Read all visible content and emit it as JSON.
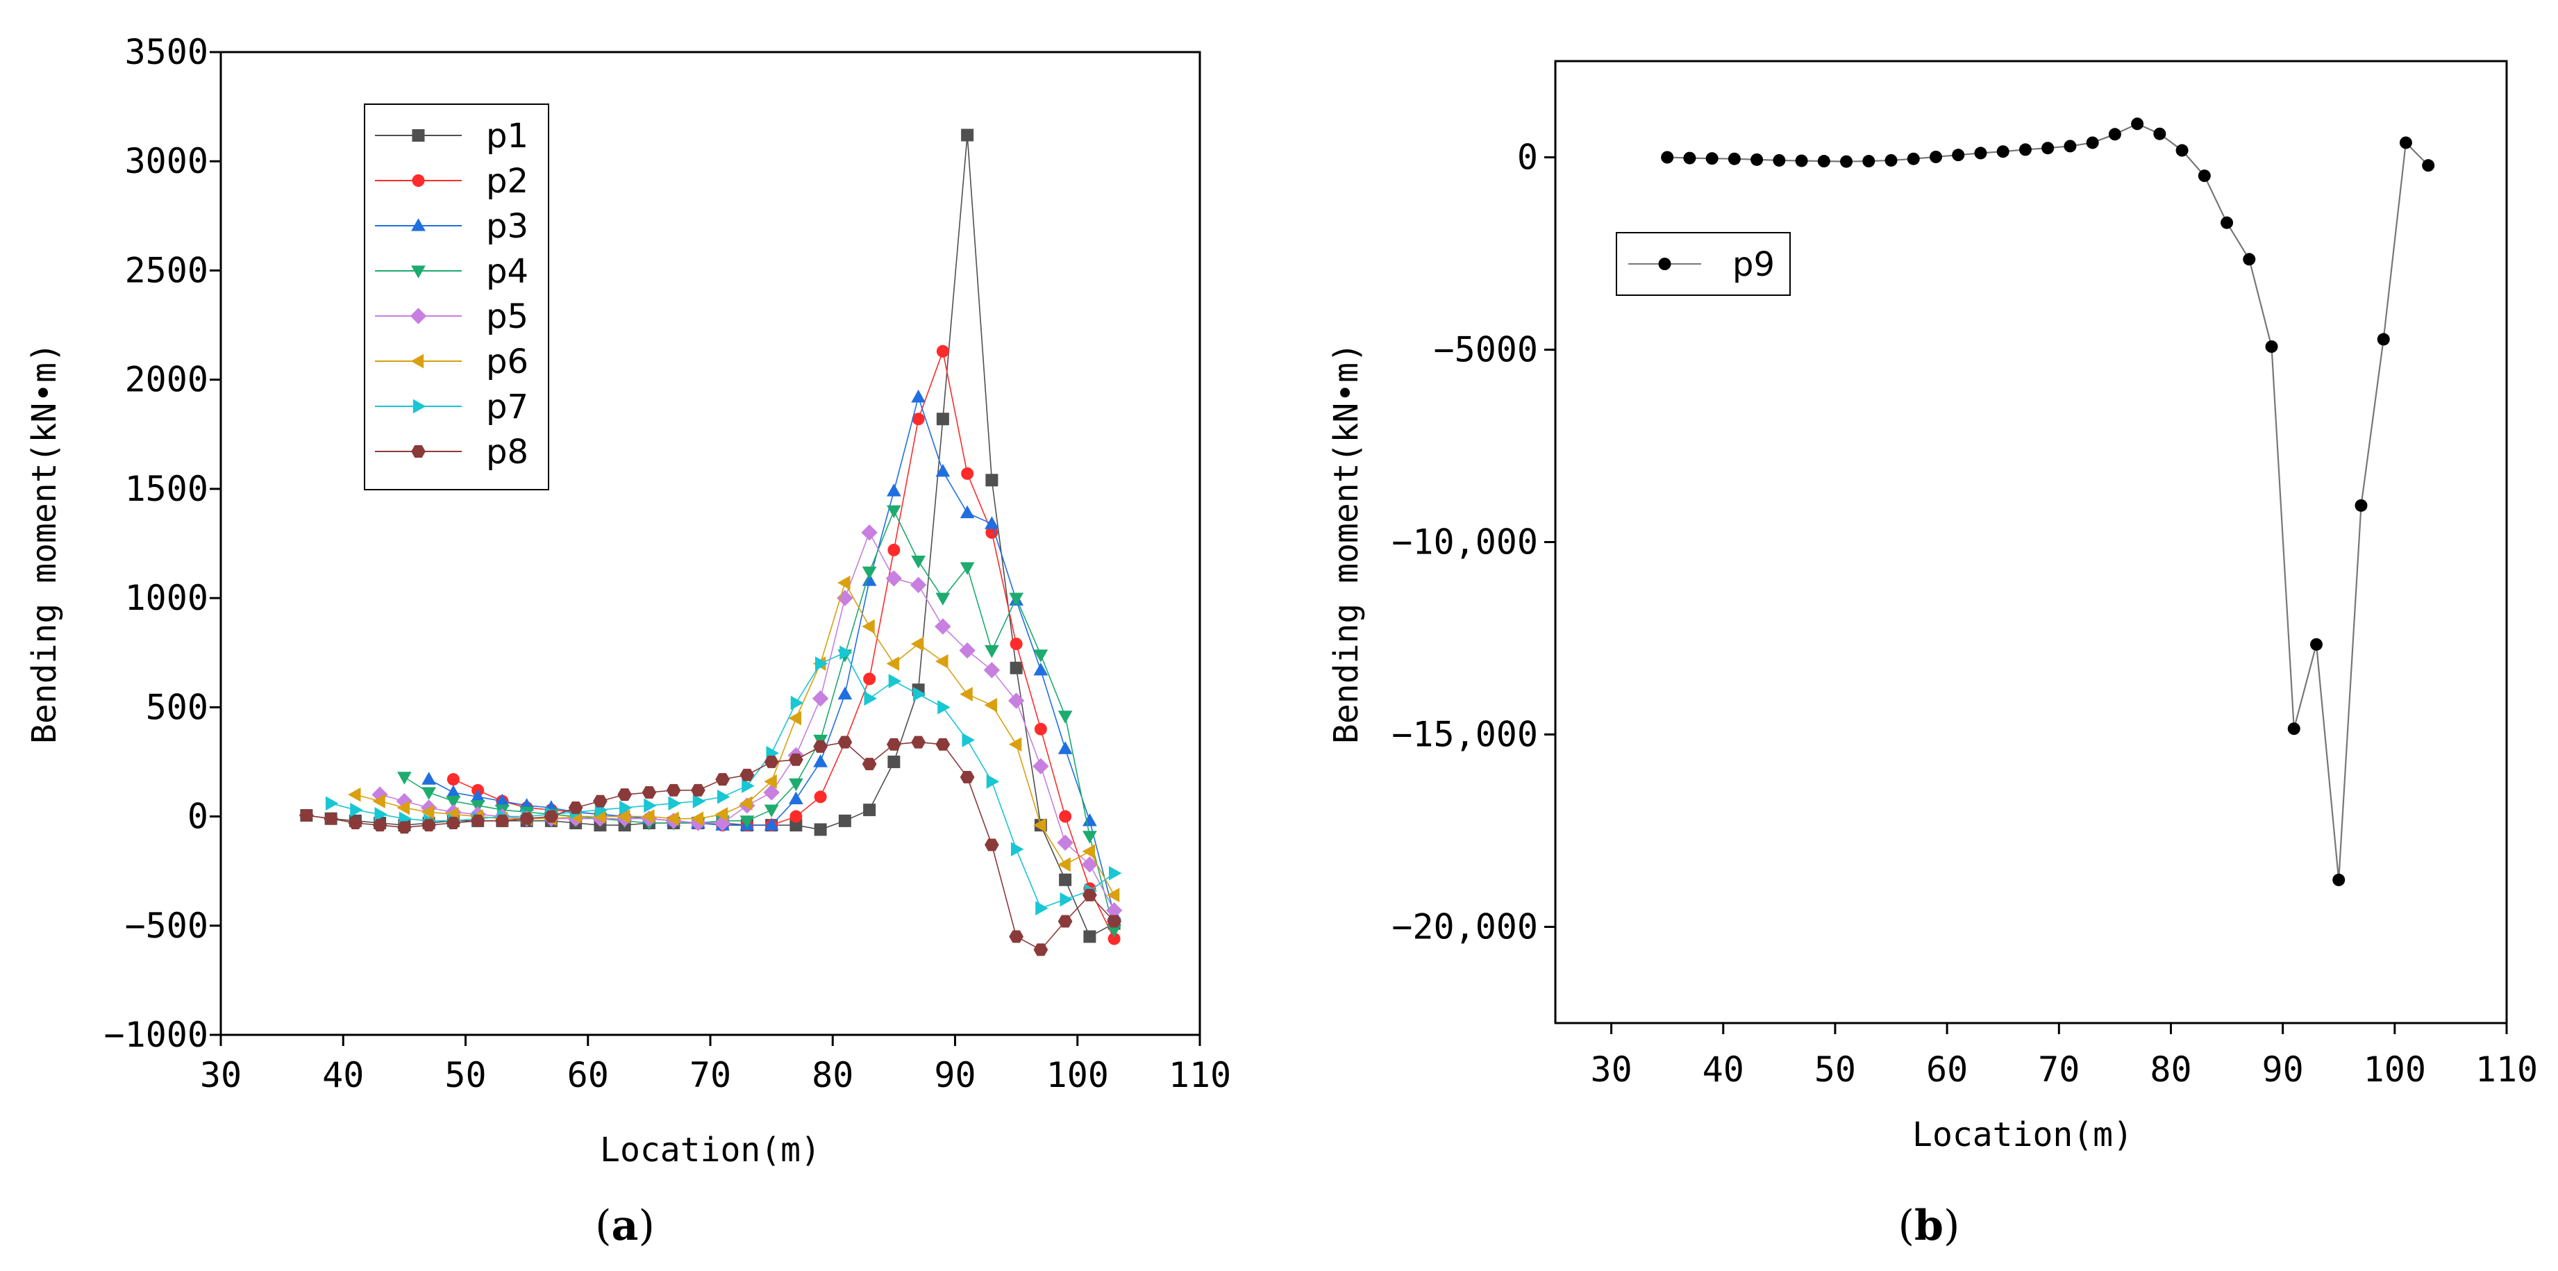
{
  "chart_data": [
    {
      "type": "line",
      "panel_label": "(a)",
      "panel_label_parts": {
        "open": "(",
        "letter": "a",
        "close": ")"
      },
      "xlabel": "Location(m)",
      "ylabel": "Bending moment(kN•m)",
      "xlim": [
        30,
        110
      ],
      "ylim": [
        -1000,
        3500
      ],
      "xticks": [
        30,
        40,
        50,
        60,
        70,
        80,
        90,
        100,
        110
      ],
      "xtick_labels": [
        "30",
        "40",
        "50",
        "60",
        "70",
        "80",
        "90",
        "100",
        "110"
      ],
      "yticks": [
        -1000,
        -500,
        0,
        500,
        1000,
        1500,
        2000,
        2500,
        3000,
        3500
      ],
      "ytick_labels": [
        "−1000",
        "−500",
        "0",
        "500",
        "1000",
        "1500",
        "2000",
        "2500",
        "3000",
        "3500"
      ],
      "legend_position": "top-left",
      "grid": false,
      "series": [
        {
          "name": "p1",
          "color": "#505050",
          "marker": "square",
          "x": [
            37,
            39,
            41,
            43,
            45,
            47,
            49,
            51,
            53,
            55,
            57,
            59,
            61,
            63,
            65,
            67,
            69,
            71,
            73,
            75,
            77,
            79,
            81,
            83,
            85,
            87,
            89,
            91,
            93,
            95,
            97,
            99,
            101,
            103
          ],
          "y": [
            5,
            -10,
            -20,
            -30,
            -40,
            -30,
            -20,
            -20,
            -20,
            -20,
            -20,
            -30,
            -40,
            -40,
            -30,
            -30,
            -30,
            -30,
            -40,
            -40,
            -40,
            -60,
            -20,
            30,
            250,
            580,
            1820,
            3120,
            1540,
            680,
            -40,
            -290,
            -550,
            -490
          ]
        },
        {
          "name": "p2",
          "color": "#ff2b2b",
          "marker": "circle",
          "x": [
            49,
            51,
            53,
            55,
            57,
            59,
            61,
            63,
            65,
            67,
            69,
            71,
            73,
            75,
            77,
            79,
            81,
            83,
            85,
            87,
            89,
            91,
            93,
            95,
            97,
            99,
            101,
            103
          ],
          "y": [
            170,
            120,
            70,
            40,
            30,
            20,
            10,
            0,
            -10,
            -20,
            -30,
            -40,
            -40,
            -40,
            0,
            90,
            340,
            630,
            1220,
            1820,
            2130,
            1570,
            1300,
            790,
            400,
            0,
            -330,
            -560
          ]
        },
        {
          "name": "p3",
          "color": "#1f6fe0",
          "marker": "triangle-up",
          "x": [
            47,
            49,
            51,
            53,
            55,
            57,
            59,
            61,
            63,
            65,
            67,
            69,
            71,
            73,
            75,
            77,
            79,
            81,
            83,
            85,
            87,
            89,
            91,
            93,
            95,
            97,
            99,
            101,
            103
          ],
          "y": [
            170,
            110,
            90,
            70,
            50,
            40,
            20,
            10,
            0,
            -10,
            -20,
            -30,
            -40,
            -40,
            -40,
            80,
            250,
            560,
            1080,
            1490,
            1920,
            1580,
            1390,
            1340,
            990,
            670,
            310,
            -20,
            -450
          ]
        },
        {
          "name": "p4",
          "color": "#1dab6e",
          "marker": "triangle-down",
          "x": [
            45,
            47,
            49,
            51,
            53,
            55,
            57,
            59,
            61,
            63,
            65,
            67,
            69,
            71,
            73,
            75,
            77,
            79,
            81,
            83,
            85,
            87,
            89,
            91,
            93,
            95,
            97,
            99,
            101,
            103
          ],
          "y": [
            180,
            110,
            70,
            50,
            30,
            20,
            10,
            0,
            -10,
            -20,
            -30,
            -30,
            -30,
            -20,
            -20,
            30,
            150,
            350,
            740,
            1120,
            1400,
            1170,
            1000,
            1140,
            760,
            1000,
            740,
            460,
            -90,
            -520
          ]
        },
        {
          "name": "p5",
          "color": "#c77fe0",
          "marker": "diamond",
          "x": [
            43,
            45,
            47,
            49,
            51,
            53,
            55,
            57,
            59,
            61,
            63,
            65,
            67,
            69,
            71,
            73,
            75,
            77,
            79,
            81,
            83,
            85,
            87,
            89,
            91,
            93,
            95,
            97,
            99,
            101,
            103
          ],
          "y": [
            100,
            70,
            40,
            20,
            10,
            0,
            -10,
            -10,
            -10,
            -10,
            -10,
            -10,
            -20,
            -30,
            -30,
            50,
            110,
            280,
            540,
            1000,
            1300,
            1090,
            1060,
            870,
            760,
            670,
            530,
            230,
            -120,
            -220,
            -430
          ]
        },
        {
          "name": "p6",
          "color": "#d9a010",
          "marker": "triangle-left",
          "x": [
            41,
            43,
            45,
            47,
            49,
            51,
            53,
            55,
            57,
            59,
            61,
            63,
            65,
            67,
            69,
            71,
            73,
            75,
            77,
            79,
            81,
            83,
            85,
            87,
            89,
            91,
            93,
            95,
            97,
            99,
            101,
            103
          ],
          "y": [
            100,
            70,
            40,
            20,
            10,
            0,
            -10,
            -10,
            -10,
            0,
            0,
            0,
            0,
            -10,
            -10,
            10,
            60,
            160,
            450,
            700,
            1070,
            870,
            700,
            790,
            710,
            560,
            510,
            330,
            -40,
            -220,
            -160,
            -360
          ]
        },
        {
          "name": "p7",
          "color": "#18c6d4",
          "marker": "triangle-right",
          "x": [
            39,
            41,
            43,
            45,
            47,
            49,
            51,
            53,
            55,
            57,
            59,
            61,
            63,
            65,
            67,
            69,
            71,
            73,
            75,
            77,
            79,
            81,
            83,
            85,
            87,
            89,
            91,
            93,
            95,
            97,
            99,
            101,
            103
          ],
          "y": [
            60,
            30,
            10,
            -10,
            -20,
            -20,
            -10,
            0,
            0,
            10,
            20,
            30,
            40,
            50,
            60,
            70,
            90,
            140,
            290,
            520,
            700,
            750,
            540,
            620,
            560,
            500,
            350,
            160,
            -150,
            -420,
            -380,
            -340,
            -260
          ]
        },
        {
          "name": "p8",
          "color": "#8b3a3a",
          "marker": "hexagon",
          "x": [
            37,
            39,
            41,
            43,
            45,
            47,
            49,
            51,
            53,
            55,
            57,
            59,
            61,
            63,
            65,
            67,
            69,
            71,
            73,
            75,
            77,
            79,
            81,
            83,
            85,
            87,
            89,
            91,
            93,
            95,
            97,
            99,
            101,
            103
          ],
          "y": [
            5,
            -10,
            -30,
            -40,
            -50,
            -40,
            -30,
            -20,
            -20,
            -10,
            0,
            40,
            70,
            100,
            110,
            120,
            120,
            170,
            190,
            250,
            260,
            320,
            340,
            240,
            330,
            340,
            330,
            180,
            -130,
            -550,
            -610,
            -480,
            -360,
            -480
          ]
        }
      ]
    },
    {
      "type": "line",
      "panel_label": "(b)",
      "panel_label_parts": {
        "open": "(",
        "letter": "b",
        "close": ")"
      },
      "xlabel": "Location(m)",
      "ylabel": "Bending moment(kN•m)",
      "xlim": [
        25,
        110
      ],
      "ylim": [
        -22500,
        2500
      ],
      "xticks": [
        30,
        40,
        50,
        60,
        70,
        80,
        90,
        100,
        110
      ],
      "xtick_labels": [
        "30",
        "40",
        "50",
        "60",
        "70",
        "80",
        "90",
        "100",
        "110"
      ],
      "yticks": [
        0,
        -5000,
        -10000,
        -15000,
        -20000
      ],
      "ytick_labels": [
        "0",
        "−5000",
        "−10,000",
        "−15,000",
        "−20,000"
      ],
      "legend_position": "top-left",
      "grid": false,
      "series": [
        {
          "name": "p9",
          "color": "#000000",
          "line_color": "#777777",
          "marker": "circle",
          "x": [
            35,
            37,
            39,
            41,
            43,
            45,
            47,
            49,
            51,
            53,
            55,
            57,
            59,
            61,
            63,
            65,
            67,
            69,
            71,
            73,
            75,
            77,
            79,
            81,
            83,
            85,
            87,
            89,
            91,
            93,
            95,
            97,
            99,
            101,
            103
          ],
          "y": [
            0,
            -20,
            -30,
            -40,
            -60,
            -80,
            -90,
            -100,
            -110,
            -100,
            -80,
            -40,
            10,
            60,
            110,
            150,
            200,
            240,
            290,
            380,
            600,
            870,
            610,
            180,
            -480,
            -1700,
            -2650,
            -4920,
            -14850,
            -12660,
            -18780,
            -9050,
            -4730,
            380,
            -210
          ]
        }
      ]
    }
  ]
}
